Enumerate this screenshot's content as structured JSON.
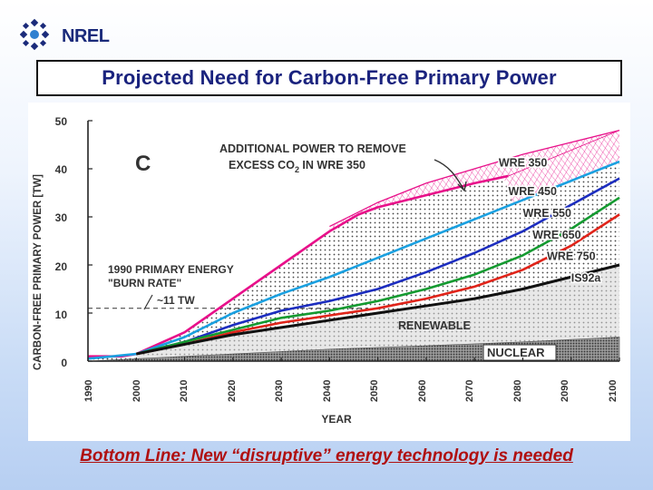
{
  "header": {
    "logo_text": "NREL",
    "title": "Projected Need for Carbon-Free Primary Power"
  },
  "footer": {
    "bottom_line": "Bottom Line: New “disruptive” energy technology is needed"
  },
  "colors": {
    "wre350": "#e8108a",
    "wre450": "#1aa0e0",
    "wre550": "#1c2dbf",
    "wre650": "#149a30",
    "wre750": "#e0241a",
    "is92a": "#111111",
    "title_text": "#1a237e",
    "bottom_text": "#b01010"
  },
  "chart_data": {
    "type": "line",
    "panel_letter": "C",
    "xlabel": "YEAR",
    "ylabel": "CARBON-FREE PRIMARY POWER [TW]",
    "xlim": [
      1990,
      2100
    ],
    "ylim": [
      0,
      50
    ],
    "x_ticks": [
      "1990",
      "2000",
      "2010",
      "2020",
      "2030",
      "2040",
      "2050",
      "2060",
      "2070",
      "2080",
      "2090",
      "2100"
    ],
    "y_ticks": [
      "0",
      "10",
      "20",
      "30",
      "40",
      "50"
    ],
    "series": [
      {
        "name": "WRE 350",
        "key": "wre350",
        "x": [
          1990,
          1997,
          2000,
          2010,
          2020,
          2030,
          2040,
          2046,
          2050,
          2060,
          2070,
          2077
        ],
        "y": [
          1,
          1,
          1.5,
          6,
          13,
          20,
          27,
          30.5,
          32,
          34.5,
          37,
          38.5
        ]
      },
      {
        "name": "WRE 450",
        "key": "wre450",
        "x": [
          1990,
          2000,
          2010,
          2020,
          2030,
          2040,
          2050,
          2060,
          2070,
          2080,
          2090,
          2100
        ],
        "y": [
          0.5,
          1.5,
          5,
          10,
          14,
          17.5,
          21.5,
          25.5,
          29.5,
          33.5,
          37.5,
          41.5
        ]
      },
      {
        "name": "WRE 550",
        "key": "wre550",
        "x": [
          2000,
          2010,
          2020,
          2030,
          2040,
          2050,
          2060,
          2070,
          2080,
          2090,
          2100
        ],
        "y": [
          1.5,
          4,
          7.5,
          10.5,
          12.5,
          15,
          18.5,
          22.5,
          27,
          32.5,
          38
        ]
      },
      {
        "name": "WRE 650",
        "key": "wre650",
        "x": [
          2000,
          2010,
          2020,
          2030,
          2040,
          2050,
          2060,
          2070,
          2080,
          2090,
          2100
        ],
        "y": [
          1.5,
          4,
          6.5,
          9,
          10.5,
          12.5,
          15,
          18,
          22,
          27.5,
          34
        ]
      },
      {
        "name": "WRE 750",
        "key": "wre750",
        "x": [
          2000,
          2010,
          2020,
          2030,
          2040,
          2050,
          2060,
          2070,
          2080,
          2090,
          2100
        ],
        "y": [
          1.5,
          3.5,
          6,
          8,
          9.5,
          11,
          13,
          15.5,
          19,
          24,
          30.5
        ]
      },
      {
        "name": "IS92a",
        "key": "is92a",
        "x": [
          2000,
          2010,
          2020,
          2030,
          2040,
          2050,
          2060,
          2070,
          2080,
          2090,
          2100
        ],
        "y": [
          1.5,
          3.5,
          5.5,
          7,
          8.5,
          10,
          11.5,
          13,
          15,
          17.5,
          20
        ]
      }
    ],
    "excess_co2_upper": {
      "x": [
        2040,
        2050,
        2060,
        2070,
        2080,
        2090,
        2100
      ],
      "y": [
        28,
        33,
        37,
        40,
        43,
        45.5,
        48
      ]
    },
    "nuclear_band": {
      "x": [
        1990,
        2000,
        2020,
        2040,
        2060,
        2080,
        2100
      ],
      "y": [
        0,
        0.5,
        1.5,
        2.5,
        3.2,
        4,
        5
      ]
    },
    "reference_line": {
      "y": 11,
      "label": "~11 TW"
    },
    "annotations": {
      "additional_power_line1": "ADDITIONAL POWER TO REMOVE",
      "additional_power_line2_pre": "EXCESS CO",
      "additional_power_sub": "2",
      "additional_power_line2_post": " IN WRE 350",
      "burn_rate_line1": "1990 PRIMARY ENERGY",
      "burn_rate_line2": "\"BURN RATE\"",
      "renewable": "RENEWABLE",
      "nuclear": "NUCLEAR"
    }
  }
}
